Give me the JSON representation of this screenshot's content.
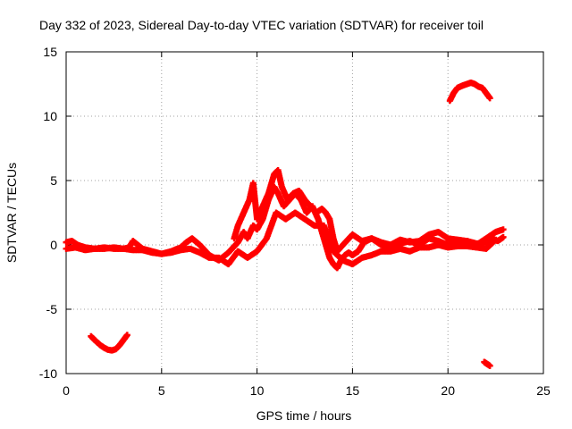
{
  "chart_data": {
    "type": "scatter",
    "title": "Day 332 of 2023, Sidereal Day-to-day VTEC variation (SDTVAR) for receiver toil",
    "xlabel": "GPS time / hours",
    "ylabel": "SDTVAR / TECUs",
    "xlim": [
      0,
      25
    ],
    "ylim": [
      -10,
      15
    ],
    "xticks": [
      0,
      5,
      10,
      15,
      20,
      25
    ],
    "yticks": [
      -10,
      -5,
      0,
      5,
      10,
      15
    ],
    "grid": true,
    "marker": "plus",
    "color": "#ff0000",
    "series": [
      {
        "name": "main-band",
        "x": [
          0,
          0.3,
          0.6,
          1.0,
          1.5,
          2.0,
          2.5,
          3.0,
          3.3,
          3.5,
          4.0,
          4.5,
          5.0,
          5.5,
          6.0,
          6.3,
          6.6,
          7.0,
          7.5,
          8.0,
          8.5,
          9.0,
          9.3,
          9.5,
          9.8,
          10.0,
          10.3,
          10.6,
          10.9,
          11.1,
          11.4,
          11.7,
          12.0,
          12.3,
          12.6,
          12.9,
          13.2,
          13.5,
          13.8,
          14.0,
          14.2,
          14.4,
          14.6,
          14.8,
          15.0,
          15.3,
          15.6,
          16.0,
          16.5,
          17.0,
          17.5,
          18.0,
          18.5,
          19.0,
          19.5,
          20.0,
          20.5,
          21.0,
          21.5,
          22.0,
          22.3,
          22.6,
          22.9
        ],
        "y": [
          0.2,
          0.3,
          0.0,
          -0.2,
          -0.3,
          -0.3,
          -0.2,
          -0.3,
          -0.2,
          0.3,
          -0.3,
          -0.5,
          -0.7,
          -0.5,
          -0.2,
          0.2,
          0.5,
          0.0,
          -0.8,
          -1.2,
          -0.6,
          0.2,
          1.0,
          0.5,
          1.5,
          1.2,
          2.0,
          3.5,
          4.5,
          4.0,
          3.0,
          3.5,
          4.0,
          3.5,
          2.5,
          3.0,
          2.0,
          0.5,
          -1.0,
          -1.5,
          -1.8,
          -1.2,
          -0.8,
          -0.6,
          -0.8,
          -0.5,
          0.2,
          0.5,
          0.0,
          -0.2,
          0.1,
          0.3,
          0.0,
          0.5,
          0.3,
          0.0,
          0.2,
          0.3,
          0.1,
          0.2,
          0.5,
          0.3,
          0.6
        ]
      },
      {
        "name": "upper-band",
        "x": [
          8.8,
          9.0,
          9.3,
          9.6,
          9.8,
          10.0,
          10.3,
          10.6,
          10.9,
          11.1,
          11.3,
          11.6,
          11.9,
          12.2,
          12.5,
          12.8,
          13.1,
          13.4,
          13.6,
          13.8,
          14.0,
          14.2,
          14.5,
          15.0,
          15.5,
          16.0,
          16.5,
          17.0,
          17.5,
          18.0,
          18.5,
          19.0,
          19.5,
          20.0,
          20.5,
          21.0,
          21.5,
          22.0,
          22.5,
          22.9
        ],
        "y": [
          0.5,
          1.5,
          2.5,
          3.5,
          4.8,
          2.0,
          3.0,
          4.0,
          5.5,
          5.8,
          4.5,
          3.5,
          4.0,
          4.2,
          3.5,
          3.0,
          2.5,
          2.8,
          2.5,
          2.0,
          0.5,
          -0.5,
          0.0,
          0.8,
          0.3,
          0.5,
          0.2,
          0.0,
          0.4,
          0.2,
          0.3,
          0.8,
          1.0,
          0.5,
          0.4,
          0.3,
          0.0,
          0.5,
          1.0,
          1.2
        ]
      },
      {
        "name": "lower-band",
        "x": [
          0,
          0.5,
          1.0,
          1.5,
          2.0,
          2.5,
          3.0,
          3.5,
          4.0,
          4.5,
          5.0,
          5.5,
          6.0,
          6.5,
          7.0,
          7.5,
          8.0,
          8.5,
          9.0,
          9.5,
          10.0,
          10.5,
          11.0,
          11.5,
          12.0,
          12.5,
          13.0,
          13.5,
          14.0,
          14.5,
          15.0,
          15.5,
          16.0,
          16.5,
          17.0,
          17.5,
          18.0,
          18.5,
          19.0,
          19.5,
          20.0,
          20.5,
          21.0,
          21.5,
          22.0,
          22.5
        ],
        "y": [
          -0.3,
          -0.2,
          -0.4,
          -0.3,
          -0.2,
          -0.3,
          -0.3,
          -0.4,
          -0.4,
          -0.6,
          -0.7,
          -0.6,
          -0.4,
          -0.3,
          -0.6,
          -1.0,
          -1.0,
          -1.5,
          -0.5,
          -1.0,
          -0.5,
          0.5,
          2.5,
          2.0,
          2.5,
          2.0,
          1.5,
          1.5,
          -0.5,
          -1.2,
          -1.5,
          -1.0,
          -0.8,
          -0.5,
          -0.5,
          -0.3,
          -0.5,
          -0.2,
          -0.2,
          0.0,
          -0.2,
          -0.1,
          -0.1,
          -0.2,
          -0.3,
          0.4
        ]
      },
      {
        "name": "negative-arc",
        "x": [
          1.3,
          1.5,
          1.8,
          2.0,
          2.2,
          2.4,
          2.6,
          2.8,
          3.0,
          3.2
        ],
        "y": [
          -7.1,
          -7.4,
          -7.8,
          -8.0,
          -8.15,
          -8.2,
          -8.1,
          -7.8,
          -7.4,
          -7.0
        ]
      },
      {
        "name": "high-arc",
        "x": [
          20.1,
          20.3,
          20.5,
          20.8,
          21.0,
          21.2,
          21.4,
          21.6,
          21.8,
          22.0,
          22.2
        ],
        "y": [
          11.2,
          11.8,
          12.2,
          12.4,
          12.5,
          12.6,
          12.5,
          12.3,
          12.2,
          11.8,
          11.4
        ]
      },
      {
        "name": "low-cluster",
        "x": [
          21.9,
          22.0,
          22.1,
          22.2
        ],
        "y": [
          -9.1,
          -9.2,
          -9.3,
          -9.4
        ]
      }
    ]
  }
}
